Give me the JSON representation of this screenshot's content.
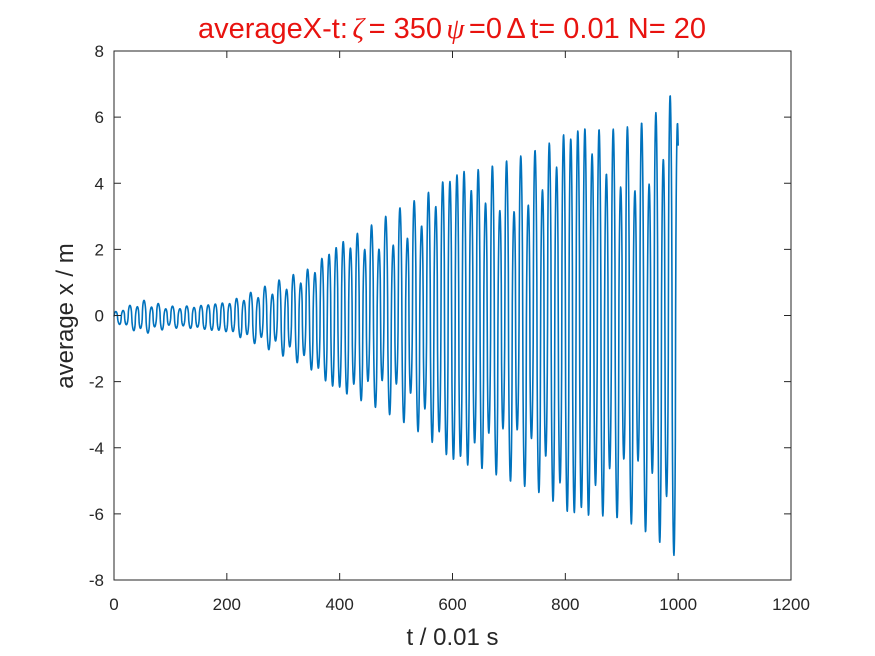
{
  "chart_data": {
    "type": "line",
    "title": {
      "prefix": "averageX-t:",
      "zeta_symbol": "ζ",
      "zeta_text": "= 350",
      "psi_symbol": "ψ",
      "psi_text": "=0",
      "dt_symbol": "Δ",
      "dt_text": "t= 0.01 N= 20"
    },
    "title_color": "#e8130f",
    "xlabel": "t / 0.01 s",
    "ylabel": "average x / m",
    "xlim": [
      0,
      1200
    ],
    "ylim": [
      -8,
      8
    ],
    "xticks": [
      0,
      200,
      400,
      600,
      800,
      1000,
      1200
    ],
    "yticks": [
      -8,
      -6,
      -4,
      -2,
      0,
      2,
      4,
      6,
      8
    ],
    "xtick_labels": [
      "0",
      "200",
      "400",
      "600",
      "800",
      "1000",
      "1200"
    ],
    "ytick_labels": [
      "-8",
      "-6",
      "-4",
      "-2",
      "0",
      "2",
      "4",
      "6",
      "8"
    ],
    "grid": false,
    "series": [
      {
        "color": "#0072bd",
        "x_range": [
          0,
          1000
        ],
        "description_points": {
          "t": [
            0,
            50,
            100,
            150,
            200,
            250,
            300,
            350,
            400,
            450,
            500,
            550,
            600,
            650,
            700,
            750,
            800,
            850,
            900,
            950,
            1000
          ],
          "upper_envelope": [
            0.1,
            0.5,
            0.3,
            0.3,
            0.4,
            0.8,
            1.2,
            1.5,
            2.2,
            2.8,
            3.4,
            3.8,
            4.3,
            4.6,
            5.0,
            5.3,
            5.6,
            5.8,
            6.0,
            6.3,
            7.2
          ],
          "lower_envelope": [
            -0.2,
            -0.6,
            -0.4,
            -0.4,
            -0.5,
            -0.9,
            -1.3,
            -1.7,
            -2.3,
            -2.8,
            -3.3,
            -3.8,
            -4.4,
            -4.8,
            -5.3,
            -5.6,
            -6.0,
            -6.2,
            -6.5,
            -7.0,
            -7.6
          ]
        }
      }
    ]
  }
}
